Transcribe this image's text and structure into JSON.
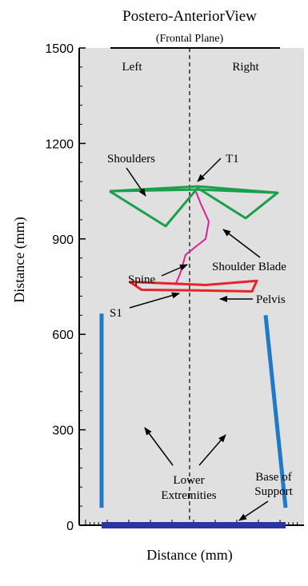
{
  "chart_data": {
    "type": "scatter",
    "title": "Postero-AnteriorView",
    "subtitle": "(Frontal Plane)",
    "xlabel": "Distance (mm)",
    "ylabel": "Distance (mm)",
    "ylim": [
      0,
      1500
    ],
    "yticks": [
      0,
      300,
      600,
      900,
      1200,
      1500
    ],
    "xticks_labeled": false,
    "grid": false,
    "background": "#e0e0e0",
    "side_labels": {
      "left": "Left",
      "right": "Right"
    },
    "midline": {
      "style": "dashed",
      "color": "#000000"
    },
    "segments": [
      {
        "name": "Shoulders",
        "color": "#1aa04a",
        "points": [
          [
            -100,
            1050
          ],
          [
            10,
            1055
          ],
          [
            110,
            1045
          ],
          [
            10,
            1065
          ],
          [
            -100,
            1050
          ]
        ]
      },
      {
        "name": "Left shoulder blade",
        "color": "#1aa04a",
        "points": [
          [
            -100,
            1050
          ],
          [
            -30,
            940
          ],
          [
            10,
            1060
          ]
        ]
      },
      {
        "name": "Shoulder Blade",
        "color": "#1aa04a",
        "points": [
          [
            10,
            1060
          ],
          [
            70,
            965
          ],
          [
            110,
            1045
          ]
        ]
      },
      {
        "name": "Spine",
        "color": "#e0209a",
        "points": [
          [
            8,
            1048
          ],
          [
            14,
            1010
          ],
          [
            24,
            955
          ],
          [
            20,
            900
          ],
          [
            -5,
            850
          ],
          [
            -12,
            790
          ],
          [
            -18,
            755
          ]
        ]
      },
      {
        "name": "Pelvis",
        "color": "#e8242a",
        "points": [
          [
            -75,
            765
          ],
          [
            -60,
            740
          ],
          [
            10,
            738
          ],
          [
            78,
            735
          ],
          [
            84,
            768
          ],
          [
            20,
            755
          ],
          [
            -75,
            765
          ]
        ]
      },
      {
        "name": "Left lower extremity",
        "color": "#1f78c8",
        "points": [
          [
            -110,
            665
          ],
          [
            -110,
            55
          ]
        ]
      },
      {
        "name": "Right lower extremity",
        "color": "#1f78c8",
        "points": [
          [
            95,
            660
          ],
          [
            120,
            55
          ]
        ]
      },
      {
        "name": "Base of Support",
        "color": "#2a35a0",
        "points": [
          [
            -110,
            0
          ],
          [
            120,
            0
          ]
        ]
      }
    ],
    "annotations": [
      {
        "id": "shoulders",
        "text": "Shoulders",
        "lines": [
          "Shoulders"
        ]
      },
      {
        "id": "t1",
        "text": "T1",
        "lines": [
          "T1"
        ]
      },
      {
        "id": "shoulder_blade",
        "text": "Shoulder Blade",
        "lines": [
          "Shoulder Blade"
        ]
      },
      {
        "id": "spine",
        "text": "Spine",
        "lines": [
          "Spine"
        ]
      },
      {
        "id": "s1",
        "text": "S1",
        "lines": [
          "S1"
        ]
      },
      {
        "id": "pelvis",
        "text": "Pelvis",
        "lines": [
          "Pelvis"
        ]
      },
      {
        "id": "lower_ext",
        "text": "Lower Extremities",
        "lines": [
          "Lower",
          "Extremities"
        ]
      },
      {
        "id": "base",
        "text": "Base of Support",
        "lines": [
          "Base of",
          "Support"
        ]
      }
    ]
  }
}
